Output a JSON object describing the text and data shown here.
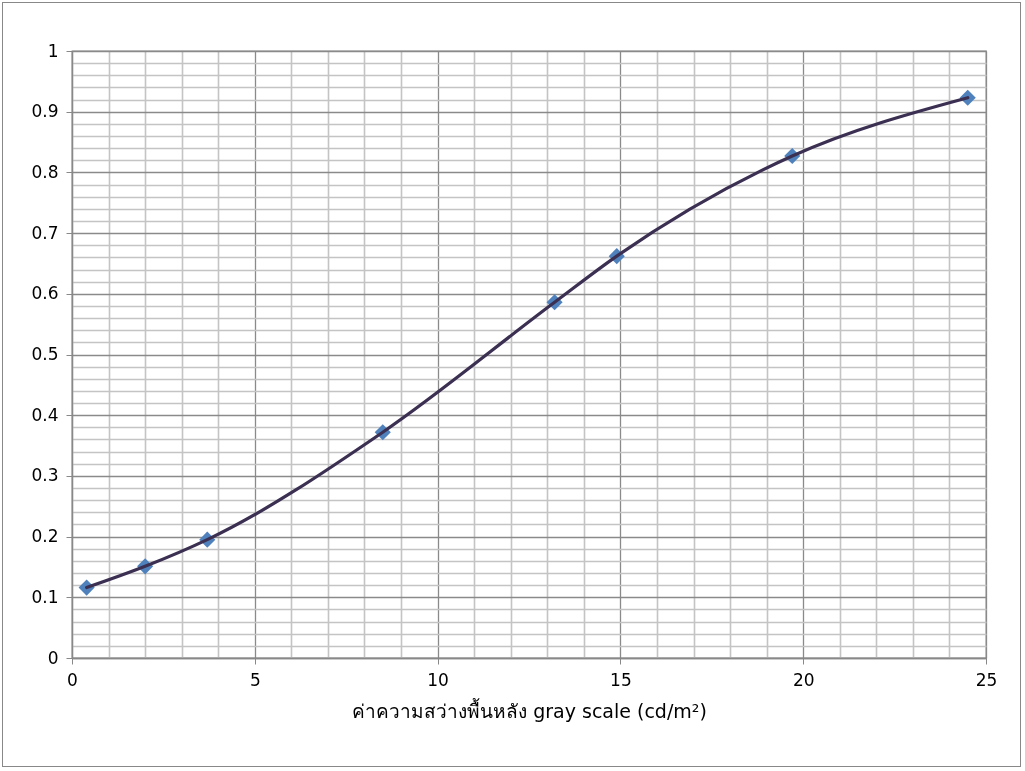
{
  "chart_data": {
    "type": "scatter",
    "xlabel": "ค่าความสว่างพื้นหลัง gray scale (cd/m²)",
    "x": [
      0.4,
      2,
      3.7,
      8.5,
      13.2,
      14.9,
      19.7,
      24.5
    ],
    "series": [
      {
        "type": "scatter",
        "color": "#4f81bd",
        "marker": "diamond",
        "values": [
          0.116,
          0.151,
          0.195,
          0.372,
          0.586,
          0.662,
          0.827,
          0.923
        ]
      },
      {
        "type": "line",
        "color": "#3b2f52",
        "marker": "none",
        "line_style": "solid",
        "values": [
          0.116,
          0.151,
          0.195,
          0.372,
          0.586,
          0.662,
          0.827,
          0.923
        ]
      }
    ],
    "xlim": [
      0,
      25
    ],
    "ylim": [
      0,
      1
    ],
    "xticks": [
      0,
      {
        "value": 1,
        "label": null
      },
      {
        "value": 2,
        "label": null
      },
      {
        "value": 3,
        "label": null
      },
      {
        "value": 4,
        "label": null
      },
      5,
      {
        "value": 6,
        "label": null
      },
      {
        "value": 7,
        "label": null
      },
      {
        "value": 8,
        "label": null
      },
      {
        "value": 9,
        "label": null
      },
      10,
      {
        "value": 11,
        "label": null
      },
      {
        "value": 12,
        "label": null
      },
      {
        "value": 13,
        "label": null
      },
      {
        "value": 14,
        "label": null
      },
      15,
      {
        "value": 16,
        "label": null
      },
      {
        "value": 17,
        "label": null
      },
      {
        "value": 18,
        "label": null
      },
      {
        "value": 19,
        "label": null
      },
      20,
      {
        "value": 21,
        "label": null
      },
      {
        "value": 22,
        "label": null
      },
      {
        "value": 23,
        "label": null
      },
      {
        "value": 24,
        "label": null
      },
      25
    ],
    "yticks": [
      0,
      {
        "value": 0.02,
        "label": null
      },
      {
        "value": 0.04,
        "label": null
      },
      {
        "value": 0.06,
        "label": null
      },
      {
        "value": 0.08,
        "label": null
      },
      0.1,
      {
        "value": 0.12,
        "label": null
      },
      {
        "value": 0.14,
        "label": null
      },
      {
        "value": 0.16,
        "label": null
      },
      {
        "value": 0.18,
        "label": null
      },
      0.2,
      {
        "value": 0.22,
        "label": null
      },
      {
        "value": 0.24,
        "label": null
      },
      {
        "value": 0.26,
        "label": null
      },
      {
        "value": 0.28,
        "label": null
      },
      0.3,
      {
        "value": 0.32,
        "label": null
      },
      {
        "value": 0.34,
        "label": null
      },
      {
        "value": 0.36,
        "label": null
      },
      {
        "value": 0.38,
        "label": null
      },
      0.4,
      {
        "value": 0.42,
        "label": null
      },
      {
        "value": 0.44,
        "label": null
      },
      {
        "value": 0.46,
        "label": null
      },
      {
        "value": 0.48,
        "label": null
      },
      0.5,
      {
        "value": 0.52,
        "label": null
      },
      {
        "value": 0.54,
        "label": null
      },
      {
        "value": 0.56,
        "label": null
      },
      {
        "value": 0.58,
        "label": null
      },
      0.6,
      {
        "value": 0.62,
        "label": null
      },
      {
        "value": 0.64,
        "label": null
      },
      {
        "value": 0.66,
        "label": null
      },
      {
        "value": 0.68,
        "label": null
      },
      0.7,
      {
        "value": 0.72,
        "label": null
      },
      {
        "value": 0.74,
        "label": null
      },
      {
        "value": 0.76,
        "label": null
      },
      {
        "value": 0.78,
        "label": null
      },
      0.8,
      {
        "value": 0.82,
        "label": null
      },
      {
        "value": 0.84,
        "label": null
      },
      {
        "value": 0.86,
        "label": null
      },
      {
        "value": 0.88,
        "label": null
      },
      0.9,
      {
        "value": 0.92,
        "label": null
      },
      {
        "value": 0.94,
        "label": null
      },
      {
        "value": 0.96,
        "label": null
      },
      {
        "value": 0.98,
        "label": null
      },
      1
    ],
    "grid": true
  }
}
